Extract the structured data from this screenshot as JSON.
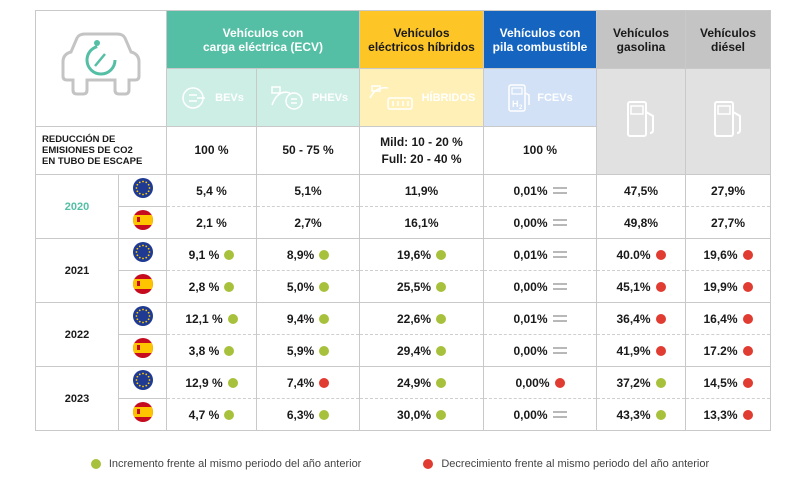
{
  "headers": {
    "ecv": "Vehículos con\ncarga eléctrica (ECV)",
    "hibridos": "Vehículos\neléctricos híbridos",
    "pila": "Vehículos con\npila combustible",
    "gasolina": "Vehículos\ngasolina",
    "diesel": "Vehículos\ndiésel"
  },
  "subheaders": {
    "bev": "BEVs",
    "phev": "PHEVs",
    "hibridos": "HÍBRIDOS",
    "fcev": "FCEVs"
  },
  "co2": {
    "label": "REDUCCIÓN DE\nEMISIONES DE CO2\nEN TUBO DE ESCAPE",
    "bev": "100 %",
    "phev": "50 - 75 %",
    "hib_mild": "Mild: 10 - 20 %",
    "hib_full": "Full: 20 - 40 %",
    "fcev": "100 %"
  },
  "years": [
    {
      "year": "2020",
      "rows": [
        {
          "region": "eu-flag-icon",
          "cells": [
            {
              "v": "5,4 %",
              "t": ""
            },
            {
              "v": "5,1%",
              "t": ""
            },
            {
              "v": "11,9%",
              "t": ""
            },
            {
              "v": "0,01%",
              "t": "eq"
            },
            {
              "v": "47,5%",
              "t": ""
            },
            {
              "v": "27,9%",
              "t": ""
            }
          ]
        },
        {
          "region": "spain-flag-icon",
          "cells": [
            {
              "v": "2,1 %",
              "t": ""
            },
            {
              "v": "2,7%",
              "t": ""
            },
            {
              "v": "16,1%",
              "t": ""
            },
            {
              "v": "0,00%",
              "t": "eq"
            },
            {
              "v": "49,8%",
              "t": ""
            },
            {
              "v": "27,7%",
              "t": ""
            }
          ]
        }
      ]
    },
    {
      "year": "2021",
      "rows": [
        {
          "region": "eu-flag-icon",
          "cells": [
            {
              "v": "9,1 %",
              "t": "up"
            },
            {
              "v": "8,9%",
              "t": "up"
            },
            {
              "v": "19,6%",
              "t": "up"
            },
            {
              "v": "0,01%",
              "t": "eq"
            },
            {
              "v": "40.0%",
              "t": "down"
            },
            {
              "v": "19,6%",
              "t": "down"
            }
          ]
        },
        {
          "region": "spain-flag-icon",
          "cells": [
            {
              "v": "2,8 %",
              "t": "up"
            },
            {
              "v": "5,0%",
              "t": "up"
            },
            {
              "v": "25,5%",
              "t": "up"
            },
            {
              "v": "0,00%",
              "t": "eq"
            },
            {
              "v": "45,1%",
              "t": "down"
            },
            {
              "v": "19,9%",
              "t": "down"
            }
          ]
        }
      ]
    },
    {
      "year": "2022",
      "rows": [
        {
          "region": "eu-flag-icon",
          "cells": [
            {
              "v": "12,1 %",
              "t": "up"
            },
            {
              "v": "9,4%",
              "t": "up"
            },
            {
              "v": "22,6%",
              "t": "up"
            },
            {
              "v": "0,01%",
              "t": "eq"
            },
            {
              "v": "36,4%",
              "t": "down"
            },
            {
              "v": "16,4%",
              "t": "down"
            }
          ]
        },
        {
          "region": "spain-flag-icon",
          "cells": [
            {
              "v": "3,8 %",
              "t": "up"
            },
            {
              "v": "5,9%",
              "t": "up"
            },
            {
              "v": "29,4%",
              "t": "up"
            },
            {
              "v": "0,00%",
              "t": "eq"
            },
            {
              "v": "41,9%",
              "t": "down"
            },
            {
              "v": "17.2%",
              "t": "down"
            }
          ]
        }
      ]
    },
    {
      "year": "2023",
      "rows": [
        {
          "region": "eu-flag-icon",
          "cells": [
            {
              "v": "12,9 %",
              "t": "up"
            },
            {
              "v": "7,4%",
              "t": "down"
            },
            {
              "v": "24,9%",
              "t": "up"
            },
            {
              "v": "0,00%",
              "t": "down"
            },
            {
              "v": "37,2%",
              "t": "up"
            },
            {
              "v": "14,5%",
              "t": "down"
            }
          ]
        },
        {
          "region": "spain-flag-icon",
          "cells": [
            {
              "v": "4,7 %",
              "t": "up"
            },
            {
              "v": "6,3%",
              "t": "up"
            },
            {
              "v": "30,0%",
              "t": "up"
            },
            {
              "v": "0,00%",
              "t": "eq"
            },
            {
              "v": "43,3%",
              "t": "up"
            },
            {
              "v": "13,3%",
              "t": "down"
            }
          ]
        }
      ]
    }
  ],
  "legend": {
    "up": "Incremento frente al mismo periodo del año anterior",
    "down": "Decrecimiento frente al mismo periodo del año anterior"
  },
  "colors": {
    "teal": "#54bfa5",
    "yellow": "#fdc626",
    "blue": "#1565c0",
    "gray": "#c4c4c4",
    "up": "#a8c13c",
    "down": "#e03c31"
  }
}
